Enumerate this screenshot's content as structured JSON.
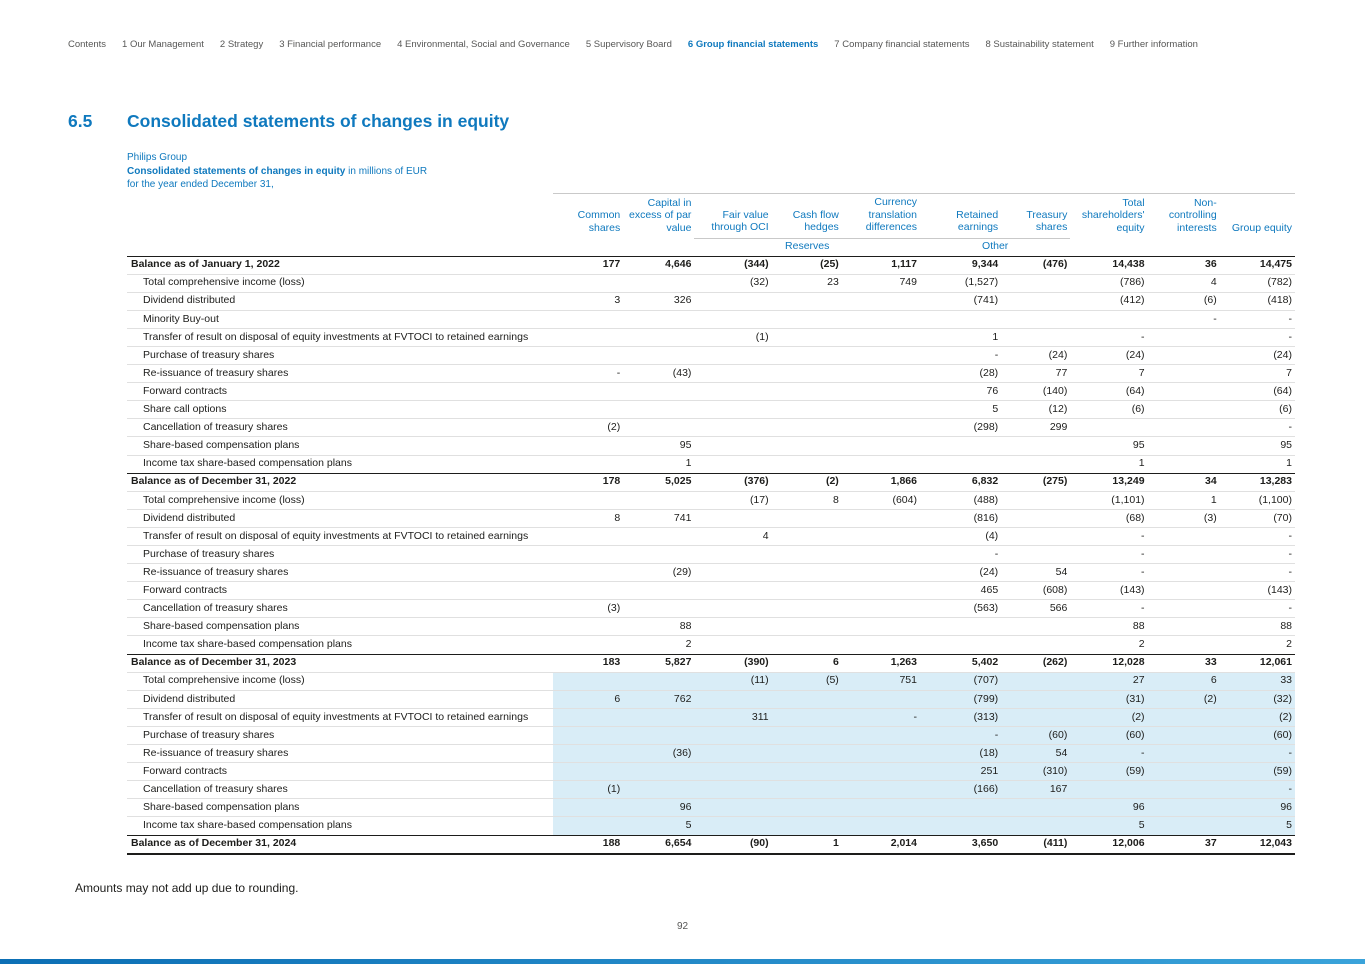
{
  "colors": {
    "brand_blue": "#0f79be",
    "row_highlight": "#d9edf7"
  },
  "nav": {
    "items": [
      {
        "label": "Contents",
        "active": false
      },
      {
        "label": "1 Our Management",
        "active": false
      },
      {
        "label": "2 Strategy",
        "active": false
      },
      {
        "label": "3 Financial performance",
        "active": false
      },
      {
        "label": "4 Environmental, Social and Governance",
        "active": false
      },
      {
        "label": "5 Supervisory Board",
        "active": false
      },
      {
        "label": "6 Group financial statements",
        "active": true
      },
      {
        "label": "7 Company financial statements",
        "active": false
      },
      {
        "label": "8 Sustainability statement",
        "active": false
      },
      {
        "label": "9 Further information",
        "active": false
      }
    ]
  },
  "section": {
    "number": "6.5",
    "title": "Consolidated statements of changes in equity"
  },
  "table_intro": {
    "group": "Philips Group",
    "title_bold": "Consolidated statements of changes in equity",
    "title_rest": " in millions of EUR",
    "subtitle": "for the year ended December 31,"
  },
  "table": {
    "columns": [
      "Common shares",
      "Capital in excess of par value",
      "Fair value through OCI",
      "Cash flow hedges",
      "Currency translation differences",
      "Retained earnings",
      "Treasury shares",
      "Total shareholders' equity",
      "Non-controlling interests",
      "Group equity"
    ],
    "group_headers": {
      "reserves": "Reserves",
      "other": "Other"
    },
    "rows": [
      {
        "label": "Balance as of January 1, 2022",
        "bold": true,
        "highlight": false,
        "values": [
          "177",
          "4,646",
          "(344)",
          "(25)",
          "1,117",
          "9,344",
          "(476)",
          "14,438",
          "36",
          "14,475"
        ]
      },
      {
        "label": "Total comprehensive income (loss)",
        "bold": false,
        "highlight": false,
        "values": [
          "",
          "",
          "(32)",
          "23",
          "749",
          "(1,527)",
          "",
          "(786)",
          "4",
          "(782)"
        ]
      },
      {
        "label": "Dividend distributed",
        "bold": false,
        "highlight": false,
        "values": [
          "3",
          "326",
          "",
          "",
          "",
          "(741)",
          "",
          "(412)",
          "(6)",
          "(418)"
        ]
      },
      {
        "label": "Minority Buy-out",
        "bold": false,
        "highlight": false,
        "values": [
          "",
          "",
          "",
          "",
          "",
          "",
          "",
          "",
          "-",
          "-"
        ]
      },
      {
        "label": "Transfer of result on disposal of equity investments at FVTOCI to retained earnings",
        "bold": false,
        "highlight": false,
        "values": [
          "",
          "",
          "(1)",
          "",
          "",
          "1",
          "",
          "-",
          "",
          "-"
        ]
      },
      {
        "label": "Purchase of treasury shares",
        "bold": false,
        "highlight": false,
        "values": [
          "",
          "",
          "",
          "",
          "",
          "-",
          "(24)",
          "(24)",
          "",
          "(24)"
        ]
      },
      {
        "label": "Re-issuance of treasury shares",
        "bold": false,
        "highlight": false,
        "values": [
          "-",
          "(43)",
          "",
          "",
          "",
          "(28)",
          "77",
          "7",
          "",
          "7"
        ]
      },
      {
        "label": "Forward contracts",
        "bold": false,
        "highlight": false,
        "values": [
          "",
          "",
          "",
          "",
          "",
          "76",
          "(140)",
          "(64)",
          "",
          "(64)"
        ]
      },
      {
        "label": "Share call options",
        "bold": false,
        "highlight": false,
        "values": [
          "",
          "",
          "",
          "",
          "",
          "5",
          "(12)",
          "(6)",
          "",
          "(6)"
        ]
      },
      {
        "label": "Cancellation of treasury shares",
        "bold": false,
        "highlight": false,
        "values": [
          "(2)",
          "",
          "",
          "",
          "",
          "(298)",
          "299",
          "",
          "",
          "-"
        ]
      },
      {
        "label": "Share-based compensation plans",
        "bold": false,
        "highlight": false,
        "values": [
          "",
          "95",
          "",
          "",
          "",
          "",
          "",
          "95",
          "",
          "95"
        ]
      },
      {
        "label": "Income tax share-based compensation plans",
        "bold": false,
        "highlight": false,
        "values": [
          "",
          "1",
          "",
          "",
          "",
          "",
          "",
          "1",
          "",
          "1"
        ]
      },
      {
        "label": "Balance as of December 31, 2022",
        "bold": true,
        "highlight": false,
        "values": [
          "178",
          "5,025",
          "(376)",
          "(2)",
          "1,866",
          "6,832",
          "(275)",
          "13,249",
          "34",
          "13,283"
        ]
      },
      {
        "label": "Total comprehensive income (loss)",
        "bold": false,
        "highlight": false,
        "values": [
          "",
          "",
          "(17)",
          "8",
          "(604)",
          "(488)",
          "",
          "(1,101)",
          "1",
          "(1,100)"
        ]
      },
      {
        "label": "Dividend distributed",
        "bold": false,
        "highlight": false,
        "values": [
          "8",
          "741",
          "",
          "",
          "",
          "(816)",
          "",
          "(68)",
          "(3)",
          "(70)"
        ]
      },
      {
        "label": "Transfer of result on disposal of equity investments at FVTOCI to retained earnings",
        "bold": false,
        "highlight": false,
        "values": [
          "",
          "",
          "4",
          "",
          "",
          "(4)",
          "",
          "-",
          "",
          "-"
        ]
      },
      {
        "label": "Purchase of treasury shares",
        "bold": false,
        "highlight": false,
        "values": [
          "",
          "",
          "",
          "",
          "",
          "-",
          "",
          "-",
          "",
          "-"
        ]
      },
      {
        "label": "Re-issuance of treasury shares",
        "bold": false,
        "highlight": false,
        "values": [
          "",
          "(29)",
          "",
          "",
          "",
          "(24)",
          "54",
          "-",
          "",
          "-"
        ]
      },
      {
        "label": "Forward contracts",
        "bold": false,
        "highlight": false,
        "values": [
          "",
          "",
          "",
          "",
          "",
          "465",
          "(608)",
          "(143)",
          "",
          "(143)"
        ]
      },
      {
        "label": "Cancellation of treasury shares",
        "bold": false,
        "highlight": false,
        "values": [
          "(3)",
          "",
          "",
          "",
          "",
          "(563)",
          "566",
          "-",
          "",
          "-"
        ]
      },
      {
        "label": "Share-based compensation plans",
        "bold": false,
        "highlight": false,
        "values": [
          "",
          "88",
          "",
          "",
          "",
          "",
          "",
          "88",
          "",
          "88"
        ]
      },
      {
        "label": "Income tax share-based compensation plans",
        "bold": false,
        "highlight": false,
        "values": [
          "",
          "2",
          "",
          "",
          "",
          "",
          "",
          "2",
          "",
          "2"
        ]
      },
      {
        "label": "Balance as of December 31, 2023",
        "bold": true,
        "highlight": false,
        "values": [
          "183",
          "5,827",
          "(390)",
          "6",
          "1,263",
          "5,402",
          "(262)",
          "12,028",
          "33",
          "12,061"
        ]
      },
      {
        "label": "Total comprehensive income (loss)",
        "bold": false,
        "highlight": true,
        "values": [
          "",
          "",
          "(11)",
          "(5)",
          "751",
          "(707)",
          "",
          "27",
          "6",
          "33"
        ]
      },
      {
        "label": "Dividend distributed",
        "bold": false,
        "highlight": true,
        "values": [
          "6",
          "762",
          "",
          "",
          "",
          "(799)",
          "",
          "(31)",
          "(2)",
          "(32)"
        ]
      },
      {
        "label": "Transfer of result on disposal of equity investments at FVTOCI to retained earnings",
        "bold": false,
        "highlight": true,
        "values": [
          "",
          "",
          "311",
          "",
          "-",
          "(313)",
          "",
          "(2)",
          "",
          "(2)"
        ]
      },
      {
        "label": "Purchase of treasury shares",
        "bold": false,
        "highlight": true,
        "values": [
          "",
          "",
          "",
          "",
          "",
          "-",
          "(60)",
          "(60)",
          "",
          "(60)"
        ]
      },
      {
        "label": "Re-issuance of treasury shares",
        "bold": false,
        "highlight": true,
        "values": [
          "",
          "(36)",
          "",
          "",
          "",
          "(18)",
          "54",
          "-",
          "",
          "-"
        ]
      },
      {
        "label": "Forward contracts",
        "bold": false,
        "highlight": true,
        "values": [
          "",
          "",
          "",
          "",
          "",
          "251",
          "(310)",
          "(59)",
          "",
          "(59)"
        ]
      },
      {
        "label": "Cancellation of treasury shares",
        "bold": false,
        "highlight": true,
        "values": [
          "(1)",
          "",
          "",
          "",
          "",
          "(166)",
          "167",
          "",
          "",
          "-"
        ]
      },
      {
        "label": "Share-based compensation plans",
        "bold": false,
        "highlight": true,
        "values": [
          "",
          "96",
          "",
          "",
          "",
          "",
          "",
          "96",
          "",
          "96"
        ]
      },
      {
        "label": "Income tax share-based compensation plans",
        "bold": false,
        "highlight": true,
        "values": [
          "",
          "5",
          "",
          "",
          "",
          "",
          "",
          "5",
          "",
          "5"
        ]
      },
      {
        "label": "Balance as of December 31, 2024",
        "bold": true,
        "highlight": false,
        "values": [
          "188",
          "6,654",
          "(90)",
          "1",
          "2,014",
          "3,650",
          "(411)",
          "12,006",
          "37",
          "12,043"
        ]
      }
    ]
  },
  "footnote": "Amounts may not add up due to rounding.",
  "page_number": "92"
}
